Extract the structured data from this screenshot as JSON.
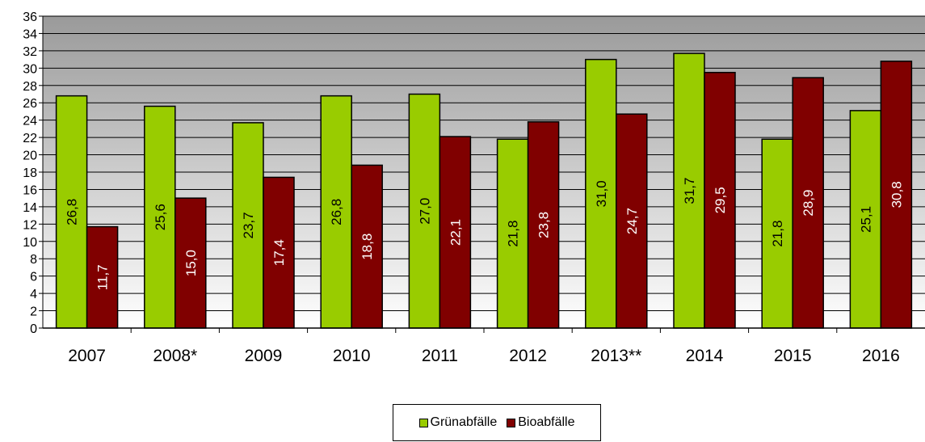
{
  "chart_data": {
    "type": "bar",
    "categories": [
      "2007",
      "2008*",
      "2009",
      "2010",
      "2011",
      "2012",
      "2013**",
      "2014",
      "2015",
      "2016"
    ],
    "series": [
      {
        "name": "Grünabfälle",
        "color": "#99cc00",
        "values": [
          26.8,
          25.6,
          23.7,
          26.8,
          27.0,
          21.8,
          31.0,
          31.7,
          21.8,
          25.1
        ],
        "labels": [
          "26,8",
          "25,6",
          "23,7",
          "26,8",
          "27,0",
          "21,8",
          "31,0",
          "31,7",
          "21,8",
          "25,1"
        ],
        "label_color": "#000000"
      },
      {
        "name": "Bioabfälle",
        "color": "#800000",
        "values": [
          11.7,
          15.0,
          17.4,
          18.8,
          22.1,
          23.8,
          24.7,
          29.5,
          28.9,
          30.8
        ],
        "labels": [
          "11,7",
          "15,0",
          "17,4",
          "18,8",
          "22,1",
          "23,8",
          "24,7",
          "29,5",
          "28,9",
          "30,8"
        ],
        "label_color": "#ffffff"
      }
    ],
    "ylim": [
      0,
      36
    ],
    "yticks": [
      0,
      2,
      4,
      6,
      8,
      10,
      12,
      14,
      16,
      18,
      20,
      22,
      24,
      26,
      28,
      30,
      32,
      34,
      36
    ],
    "grid": true,
    "legend_position": "bottom",
    "plot_background": "gradient-gray"
  }
}
